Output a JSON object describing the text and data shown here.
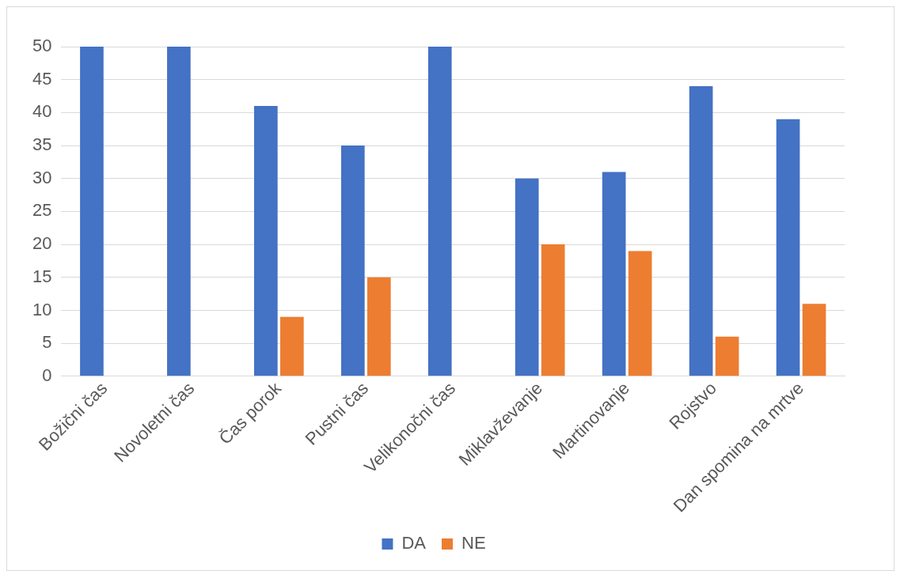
{
  "chart_data": {
    "type": "bar",
    "categories": [
      "Božični čas",
      "Novoletni čas",
      "Čas porok",
      "Pustni čas",
      "Velikonočni čas",
      "Miklavževanje",
      "Martinovanje",
      "Rojstvo",
      "Dan spomina na mrtve"
    ],
    "series": [
      {
        "name": "DA",
        "color": "#4472c4",
        "values": [
          50,
          50,
          41,
          35,
          50,
          30,
          31,
          44,
          39
        ]
      },
      {
        "name": "NE",
        "color": "#ed7d31",
        "values": [
          0,
          0,
          9,
          15,
          0,
          20,
          19,
          6,
          11
        ]
      }
    ],
    "ylim": [
      0,
      50
    ],
    "yticks": [
      0,
      5,
      10,
      15,
      20,
      25,
      30,
      35,
      40,
      45,
      50
    ],
    "grid": "y",
    "legend": "bottom"
  }
}
